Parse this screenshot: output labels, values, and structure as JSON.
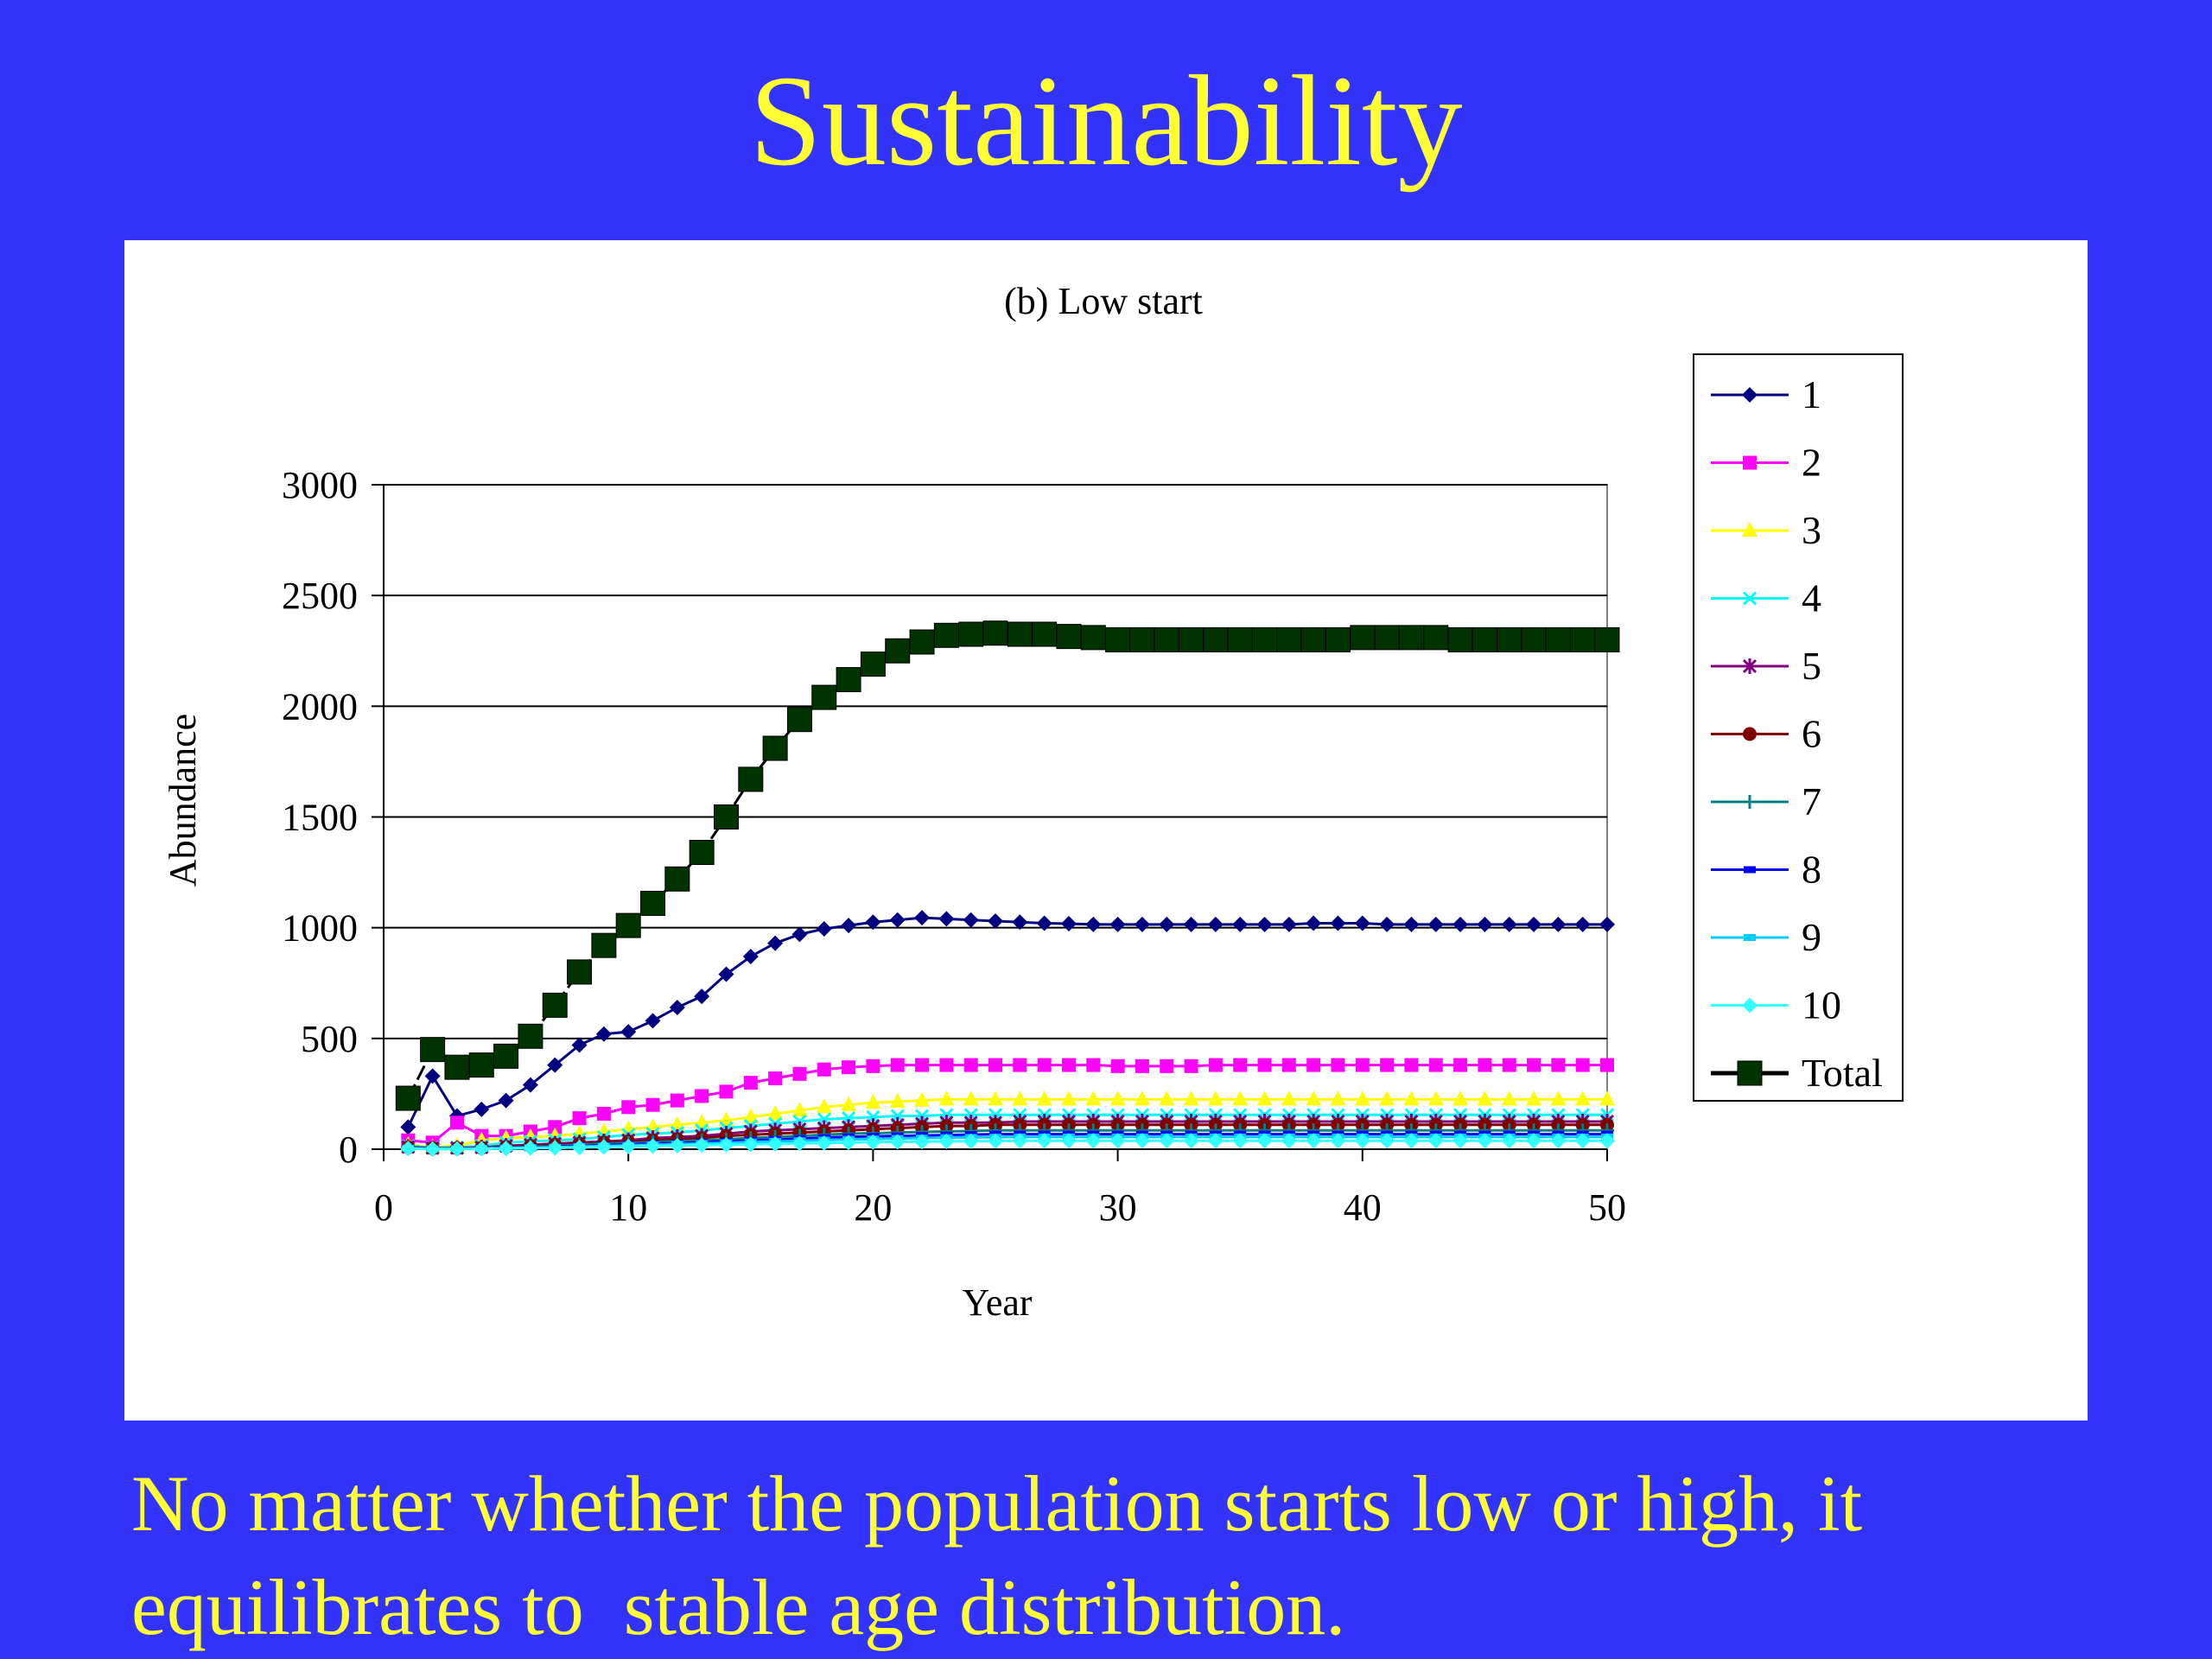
{
  "slide": {
    "title": "Sustainability",
    "caption_line1": "No matter whether the population starts low or high, it",
    "caption_line2": "equilibrates to  stable age distribution."
  },
  "colors": {
    "background": "#3333ff",
    "title_text": "#ffff33",
    "panel": "#ffffff"
  },
  "chart_data": {
    "type": "line",
    "title": "(b) Low start",
    "xlabel": "Year",
    "ylabel": "Abundance",
    "xlim": [
      0,
      50
    ],
    "ylim": [
      0,
      3000
    ],
    "x_ticks": [
      0,
      10,
      20,
      30,
      40,
      50
    ],
    "y_ticks": [
      0,
      500,
      1000,
      1500,
      2000,
      2500,
      3000
    ],
    "grid": "horizontal",
    "legend_position": "right",
    "x": [
      1,
      2,
      3,
      4,
      5,
      6,
      7,
      8,
      9,
      10,
      11,
      12,
      13,
      14,
      15,
      16,
      17,
      18,
      19,
      20,
      21,
      22,
      23,
      24,
      25,
      26,
      27,
      28,
      29,
      30,
      31,
      32,
      33,
      34,
      35,
      36,
      37,
      38,
      39,
      40,
      41,
      42,
      43,
      44,
      45,
      46,
      47,
      48,
      49,
      50
    ],
    "series": [
      {
        "name": "1",
        "color": "#000080",
        "marker": "diamond",
        "values": [
          100,
          330,
          150,
          180,
          220,
          290,
          380,
          470,
          520,
          530,
          580,
          640,
          690,
          790,
          870,
          930,
          970,
          995,
          1010,
          1025,
          1035,
          1045,
          1040,
          1035,
          1030,
          1025,
          1020,
          1018,
          1015,
          1015,
          1015,
          1015,
          1015,
          1015,
          1015,
          1015,
          1015,
          1020,
          1020,
          1020,
          1015,
          1015,
          1015,
          1015,
          1015,
          1015,
          1015,
          1015,
          1015,
          1015
        ]
      },
      {
        "name": "2",
        "color": "#ff00ff",
        "marker": "square",
        "values": [
          40,
          30,
          120,
          60,
          60,
          80,
          100,
          140,
          160,
          190,
          200,
          220,
          240,
          260,
          300,
          320,
          340,
          360,
          370,
          375,
          380,
          380,
          380,
          380,
          380,
          380,
          380,
          380,
          380,
          375,
          375,
          375,
          375,
          380,
          380,
          380,
          380,
          380,
          380,
          380,
          380,
          380,
          380,
          380,
          380,
          380,
          380,
          380,
          380,
          380
        ]
      },
      {
        "name": "3",
        "color": "#ffff00",
        "marker": "triangle",
        "values": [
          20,
          10,
          15,
          40,
          50,
          55,
          60,
          70,
          80,
          90,
          100,
          110,
          120,
          130,
          145,
          160,
          175,
          190,
          200,
          210,
          215,
          220,
          225,
          225,
          225,
          225,
          225,
          225,
          225,
          225,
          225,
          225,
          225,
          225,
          225,
          225,
          225,
          225,
          225,
          225,
          225,
          225,
          225,
          225,
          225,
          225,
          225,
          225,
          225,
          225
        ]
      },
      {
        "name": "4",
        "color": "#00ffff",
        "marker": "x",
        "values": [
          15,
          8,
          8,
          15,
          30,
          35,
          40,
          45,
          55,
          65,
          70,
          75,
          85,
          95,
          105,
          115,
          125,
          135,
          140,
          145,
          150,
          150,
          155,
          155,
          155,
          155,
          155,
          155,
          155,
          155,
          155,
          155,
          155,
          155,
          155,
          155,
          155,
          155,
          155,
          155,
          155,
          155,
          155,
          155,
          155,
          155,
          155,
          155,
          155,
          155
        ]
      },
      {
        "name": "5",
        "color": "#800080",
        "marker": "star",
        "values": [
          10,
          5,
          5,
          8,
          15,
          20,
          25,
          30,
          35,
          40,
          50,
          55,
          60,
          70,
          80,
          85,
          90,
          95,
          100,
          105,
          110,
          115,
          120,
          120,
          120,
          125,
          125,
          125,
          125,
          125,
          125,
          125,
          125,
          125,
          125,
          125,
          125,
          125,
          125,
          125,
          125,
          125,
          125,
          125,
          125,
          125,
          125,
          125,
          125,
          125
        ]
      },
      {
        "name": "6",
        "color": "#800000",
        "marker": "circle",
        "values": [
          8,
          4,
          4,
          6,
          10,
          15,
          20,
          25,
          30,
          35,
          40,
          45,
          50,
          60,
          65,
          70,
          75,
          80,
          85,
          90,
          95,
          100,
          105,
          105,
          110,
          110,
          110,
          110,
          110,
          110,
          110,
          110,
          110,
          110,
          110,
          110,
          110,
          110,
          110,
          110,
          110,
          110,
          110,
          110,
          110,
          110,
          110,
          110,
          110,
          110
        ]
      },
      {
        "name": "7",
        "color": "#008080",
        "marker": "plus",
        "values": [
          6,
          3,
          3,
          5,
          8,
          12,
          15,
          20,
          25,
          28,
          32,
          36,
          40,
          45,
          50,
          55,
          60,
          65,
          70,
          72,
          75,
          78,
          80,
          82,
          85,
          85,
          85,
          85,
          85,
          85,
          85,
          85,
          85,
          85,
          85,
          85,
          85,
          85,
          85,
          85,
          85,
          85,
          85,
          85,
          85,
          85,
          85,
          85,
          85,
          85
        ]
      },
      {
        "name": "8",
        "color": "#0000ff",
        "marker": "dash",
        "values": [
          5,
          2,
          2,
          4,
          6,
          9,
          12,
          15,
          18,
          22,
          25,
          28,
          32,
          36,
          40,
          44,
          48,
          52,
          56,
          58,
          60,
          62,
          64,
          66,
          68,
          68,
          68,
          68,
          68,
          68,
          68,
          68,
          68,
          68,
          68,
          68,
          68,
          68,
          68,
          68,
          68,
          68,
          68,
          68,
          68,
          68,
          68,
          68,
          68,
          68
        ]
      },
      {
        "name": "9",
        "color": "#00ccff",
        "marker": "dash",
        "values": [
          4,
          2,
          2,
          3,
          5,
          7,
          9,
          12,
          14,
          17,
          20,
          23,
          26,
          29,
          32,
          35,
          38,
          41,
          44,
          46,
          48,
          50,
          52,
          53,
          54,
          55,
          55,
          55,
          55,
          55,
          55,
          55,
          55,
          55,
          55,
          55,
          55,
          55,
          55,
          55,
          55,
          55,
          55,
          55,
          55,
          55,
          55,
          55,
          55,
          55
        ]
      },
      {
        "name": "10",
        "color": "#33ffff",
        "marker": "diamond",
        "values": [
          3,
          1,
          1,
          2,
          3,
          5,
          6,
          8,
          10,
          12,
          14,
          16,
          18,
          20,
          22,
          24,
          26,
          28,
          30,
          32,
          33,
          34,
          35,
          36,
          37,
          38,
          38,
          38,
          38,
          38,
          38,
          38,
          38,
          38,
          38,
          38,
          38,
          38,
          38,
          38,
          38,
          38,
          38,
          38,
          38,
          38,
          38,
          38,
          38,
          38
        ]
      },
      {
        "name": "Total",
        "color": "#003300",
        "marker": "big-square",
        "values": [
          230,
          450,
          370,
          380,
          420,
          510,
          650,
          800,
          920,
          1010,
          1110,
          1220,
          1340,
          1500,
          1670,
          1810,
          1940,
          2040,
          2120,
          2190,
          2250,
          2290,
          2320,
          2325,
          2330,
          2325,
          2325,
          2315,
          2310,
          2300,
          2300,
          2300,
          2300,
          2300,
          2300,
          2300,
          2300,
          2300,
          2300,
          2310,
          2310,
          2310,
          2310,
          2300,
          2300,
          2300,
          2300,
          2300,
          2300,
          2300
        ]
      }
    ]
  }
}
